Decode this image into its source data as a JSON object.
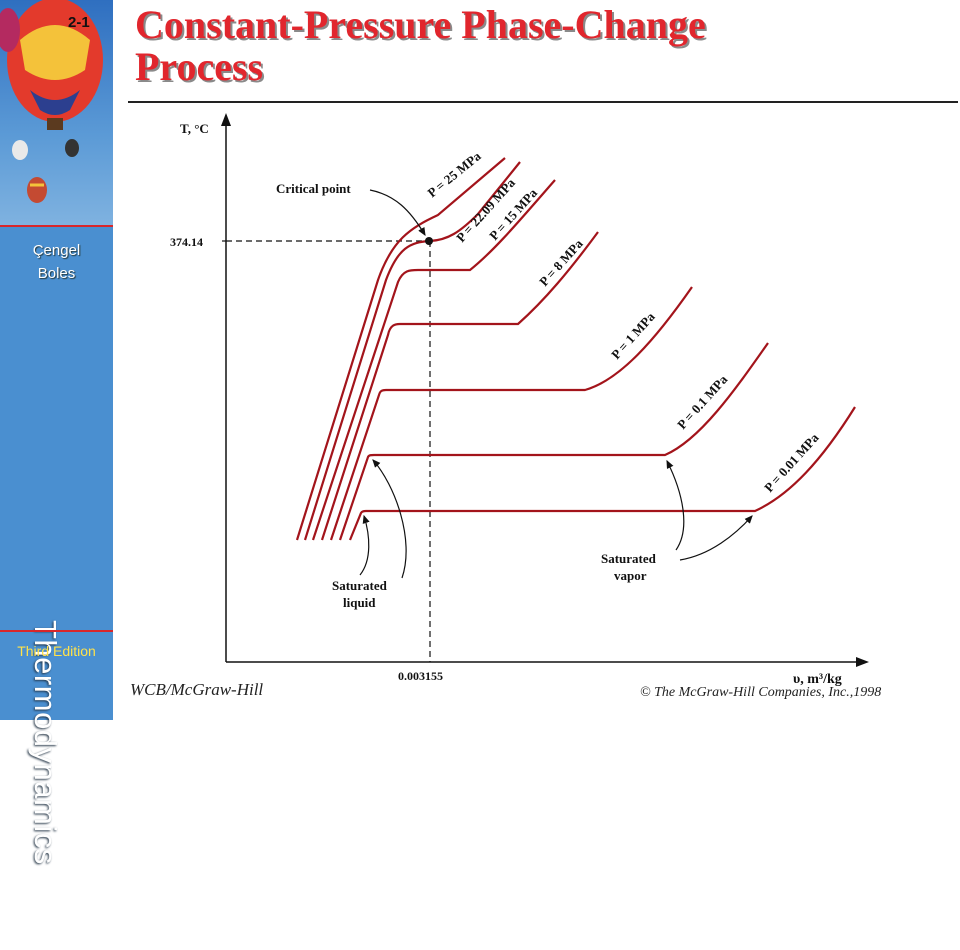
{
  "sidebar": {
    "slide_number": "2-1",
    "author_line1": "Çengel",
    "author_line2": "Boles",
    "book_title": "Thermodynamics",
    "edition": "Third Edition"
  },
  "title": {
    "line1": "Constant-Pressure Phase-Change",
    "line2": "Process"
  },
  "diagram": {
    "y_axis_label": "T, °C",
    "x_axis_label": "υ, m³/kg",
    "critical_temperature_tick": "374.14",
    "critical_volume_tick": "0.003155",
    "critical_point_label": "Critical point",
    "saturated_liquid_label_line1": "Saturated",
    "saturated_liquid_label_line2": "liquid",
    "saturated_vapor_label_line1": "Saturated",
    "saturated_vapor_label_line2": "vapor",
    "isobars": [
      {
        "label": "P = 25 MPa"
      },
      {
        "label": "P = 22.09 MPa"
      },
      {
        "label": "P = 15 MPa"
      },
      {
        "label": "P = 8 MPa"
      },
      {
        "label": "P = 1 MPa"
      },
      {
        "label": "P = 0.1 MPa"
      },
      {
        "label": "P = 0.01 MPa"
      }
    ],
    "curve_color": "#a3141b"
  },
  "footer": {
    "publisher": "WCB/McGraw-Hill",
    "copyright": "© The McGraw-Hill Companies, Inc.,1998"
  }
}
